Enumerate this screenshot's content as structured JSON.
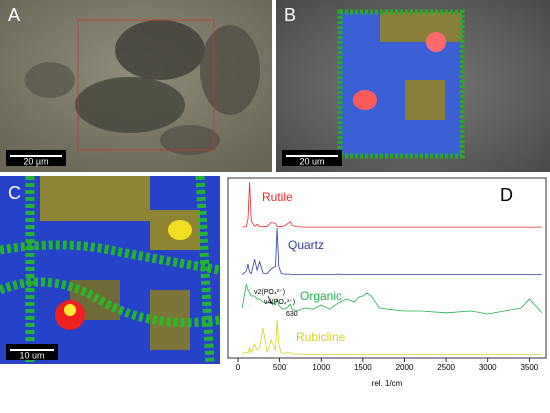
{
  "panels": [
    {
      "label": "A",
      "scale_bar": "20 µm"
    },
    {
      "label": "B",
      "scale_bar": "20 um"
    },
    {
      "label": "C",
      "scale_bar": "10 um"
    },
    {
      "label": "D"
    }
  ],
  "chart_data": {
    "type": "line",
    "xlabel": "rel. 1/cm",
    "xlim": [
      -120,
      3700
    ],
    "xticks": [
      0,
      500,
      1000,
      1500,
      2000,
      2500,
      3000,
      3500
    ],
    "ylim": [
      0,
      100
    ],
    "x": [
      50,
      100,
      120,
      140,
      160,
      200,
      230,
      260,
      300,
      350,
      400,
      450,
      470,
      490,
      520,
      560,
      600,
      630,
      650,
      700,
      800,
      900,
      1000,
      1100,
      1200,
      1300,
      1400,
      1450,
      1500,
      1550,
      1600,
      1700,
      1800,
      2000,
      2200,
      2500,
      2800,
      3000,
      3200,
      3400,
      3500,
      3600,
      3650
    ],
    "series": [
      {
        "name": "Rutile",
        "color": "#e8262b",
        "values": [
          2,
          3,
          20,
          100,
          15,
          4,
          8,
          3,
          3,
          4,
          12,
          10,
          4,
          3,
          3,
          5,
          10,
          14,
          6,
          3,
          2,
          2,
          2,
          2,
          2,
          2,
          2,
          2,
          2,
          2,
          2,
          2,
          2,
          2,
          2,
          2,
          2,
          2,
          2,
          2,
          2,
          2,
          2
        ]
      },
      {
        "name": "Quartz",
        "color": "#2e3d9a",
        "values": [
          3,
          10,
          25,
          8,
          5,
          35,
          12,
          30,
          6,
          5,
          15,
          20,
          100,
          20,
          5,
          4,
          4,
          4,
          3,
          3,
          3,
          3,
          3,
          3,
          4,
          3,
          3,
          3,
          3,
          3,
          3,
          3,
          3,
          3,
          3,
          3,
          3,
          3,
          3,
          3,
          3,
          3,
          3
        ]
      },
      {
        "name": "Organic",
        "color": "#22b14c",
        "values": [
          30,
          70,
          60,
          55,
          50,
          50,
          45,
          45,
          40,
          38,
          40,
          35,
          45,
          35,
          30,
          28,
          32,
          36,
          28,
          25,
          30,
          28,
          35,
          28,
          38,
          45,
          40,
          48,
          50,
          55,
          50,
          30,
          28,
          25,
          25,
          22,
          25,
          20,
          25,
          30,
          45,
          30,
          22
        ]
      },
      {
        "name": "Rubicline",
        "color": "#d8d020",
        "values": [
          5,
          10,
          8,
          20,
          8,
          30,
          15,
          20,
          70,
          10,
          40,
          15,
          90,
          30,
          8,
          6,
          10,
          8,
          5,
          5,
          4,
          4,
          4,
          4,
          4,
          4,
          4,
          4,
          4,
          4,
          4,
          4,
          4,
          4,
          4,
          4,
          4,
          4,
          4,
          4,
          4,
          4,
          4
        ]
      }
    ],
    "annotations": [
      "ν2(PO₄³⁻)",
      "ν4(PO₄³⁻)",
      "630"
    ]
  }
}
